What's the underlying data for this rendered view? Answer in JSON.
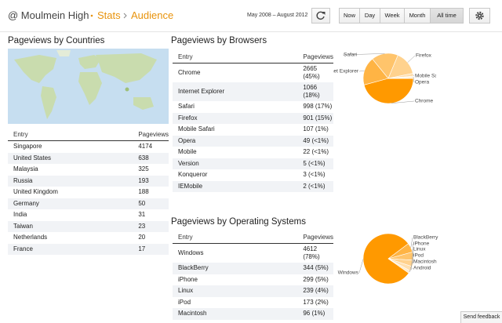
{
  "header": {
    "blog": "@ Moulmein High",
    "section": "Stats",
    "page": "Audience",
    "date_range": "May 2008 – August 2012",
    "ranges": [
      "Now",
      "Day",
      "Week",
      "Month",
      "All time"
    ]
  },
  "countries": {
    "title": "Pageviews by Countries",
    "columns": [
      "Entry",
      "Pageviews"
    ],
    "rows": [
      {
        "entry": "Singapore",
        "views": 4174
      },
      {
        "entry": "United States",
        "views": 638
      },
      {
        "entry": "Malaysia",
        "views": 325
      },
      {
        "entry": "Russia",
        "views": 193
      },
      {
        "entry": "United Kingdom",
        "views": 188
      },
      {
        "entry": "Germany",
        "views": 50
      },
      {
        "entry": "India",
        "views": 31
      },
      {
        "entry": "Taiwan",
        "views": 23
      },
      {
        "entry": "Netherlands",
        "views": 20
      },
      {
        "entry": "France",
        "views": 17
      }
    ]
  },
  "browsers": {
    "title": "Pageviews by Browsers",
    "columns": [
      "Entry",
      "Pageviews"
    ],
    "rows": [
      {
        "entry": "Chrome",
        "views": 2665,
        "share": "(45%)"
      },
      {
        "entry": "Internet Explorer",
        "views": 1066,
        "share": "(18%)"
      },
      {
        "entry": "Safari",
        "views": 998,
        "share": "(17%)"
      },
      {
        "entry": "Firefox",
        "views": 901,
        "share": "(15%)"
      },
      {
        "entry": "Mobile Safari",
        "views": 107,
        "share": "(1%)"
      },
      {
        "entry": "Opera",
        "views": 49,
        "share": "(<1%)"
      },
      {
        "entry": "Mobile",
        "views": 22,
        "share": "(<1%)"
      },
      {
        "entry": "Version",
        "views": 5,
        "share": "(<1%)"
      },
      {
        "entry": "Konqueror",
        "views": 3,
        "share": "(<1%)"
      },
      {
        "entry": "IEMobile",
        "views": 2,
        "share": "(<1%)"
      }
    ]
  },
  "os": {
    "title": "Pageviews by Operating Systems",
    "columns": [
      "Entry",
      "Pageviews"
    ],
    "rows": [
      {
        "entry": "Windows",
        "views": 4612,
        "share": "(78%)"
      },
      {
        "entry": "BlackBerry",
        "views": 344,
        "share": "(5%)"
      },
      {
        "entry": "iPhone",
        "views": 299,
        "share": "(5%)"
      },
      {
        "entry": "Linux",
        "views": 239,
        "share": "(4%)"
      },
      {
        "entry": "iPod",
        "views": 173,
        "share": "(2%)"
      },
      {
        "entry": "Macintosh",
        "views": 96,
        "share": "(1%)"
      }
    ],
    "chart_labels": [
      "Android"
    ]
  },
  "feedback": "Send feedback"
}
